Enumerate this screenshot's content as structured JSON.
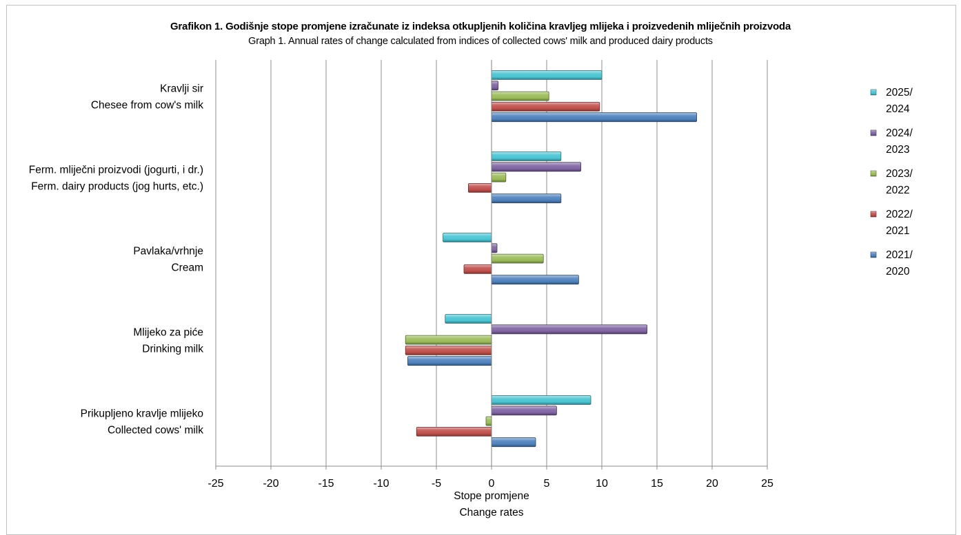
{
  "chart_data": {
    "type": "bar",
    "orientation": "horizontal",
    "title": "Grafikon 1. Godišnje stope  promjene izračunate  iz indeksa otkupljenih količina kravljeg mlijeka  i proizvedenih mliječnih  proizvoda",
    "subtitle": "Graph 1. Annual rates of change calculated  from indices of collected  cows' milk and produced dairy products",
    "xlabel_line1": "Stope  promjene",
    "xlabel_line2": "Change rates",
    "xlim": [
      -25,
      25
    ],
    "x_ticks": [
      -25,
      -20,
      -15,
      -10,
      -5,
      0,
      5,
      10,
      15,
      20,
      25
    ],
    "x_tick_labels": [
      "-25",
      "-20",
      "-15",
      "-10",
      "-5",
      "0",
      "5",
      "10",
      "15",
      "20",
      "25"
    ],
    "grid": "vertical",
    "legend_position": "right",
    "categories": [
      {
        "line1": "Kravlji sir",
        "line2": "Chesee from cow's milk"
      },
      {
        "line1": "Ferm.  mliječni proizvodi (jogurti, i dr.)",
        "line2": "Ferm.  dairy products (jog hurts, etc.)"
      },
      {
        "line1": "Pavlaka/vrhnje",
        "line2": "Cream"
      },
      {
        "line1": "Mlijeko za piće",
        "line2": "Drinking milk"
      },
      {
        "line1": "Prikupljeno kravlje mlijeko",
        "line2": "Collected cows' milk"
      }
    ],
    "series": [
      {
        "name_line1": "2025/",
        "name_line2": "2024",
        "color": "#4bc4d3",
        "values": [
          10.0,
          6.3,
          -4.4,
          -4.2,
          9.0
        ]
      },
      {
        "name_line1": "2024/",
        "name_line2": "2023",
        "color": "#8064a2",
        "values": [
          0.6,
          8.1,
          0.5,
          14.1,
          5.9
        ]
      },
      {
        "name_line1": "2023/",
        "name_line2": "2022",
        "color": "#9bbb59",
        "values": [
          5.2,
          1.3,
          4.7,
          -7.8,
          -0.5
        ]
      },
      {
        "name_line1": "2022/",
        "name_line2": "2021",
        "color": "#c0504d",
        "values": [
          9.8,
          -2.1,
          -2.5,
          -7.8,
          -6.8
        ]
      },
      {
        "name_line1": "2021/",
        "name_line2": "2020",
        "color": "#4f81bd",
        "values": [
          18.6,
          6.3,
          7.9,
          -7.6,
          4.0
        ]
      }
    ]
  }
}
